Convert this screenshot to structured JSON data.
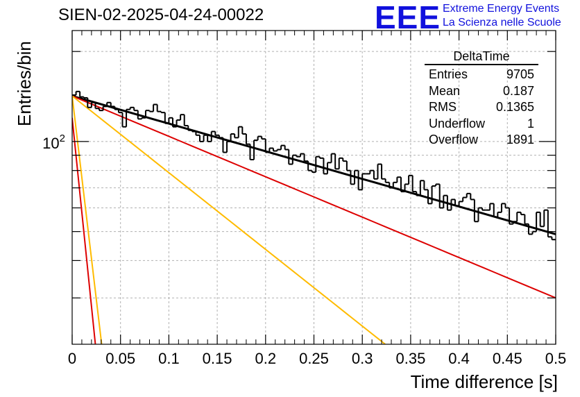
{
  "header": {
    "title": "SIEN-02-2025-04-24-00022",
    "logo_text": "EEE",
    "logo_line1": "Extreme Energy Events",
    "logo_line2": "La Scienza nelle Scuole"
  },
  "stats": {
    "name": "DeltaTime",
    "rows": [
      {
        "label": "Entries",
        "value": "9705"
      },
      {
        "label": "Mean",
        "value": "0.187"
      },
      {
        "label": "RMS",
        "value": "0.1365"
      },
      {
        "label": "Underflow",
        "value": "1"
      },
      {
        "label": "Overflow",
        "value": "1891"
      }
    ]
  },
  "colors": {
    "histogram": "#000000",
    "total_fit": "#000000",
    "red_fit": "#dd0000",
    "yellow_fit": "#ffbb00",
    "grid": "#b0b0b0",
    "logo": "#1111dd"
  },
  "chart_data": {
    "type": "histogram",
    "title": "SIEN-02-2025-04-24-00022",
    "xlabel": "Time difference [s]",
    "ylabel": "Entries/bin",
    "xlim": [
      0,
      0.5
    ],
    "ylim": [
      21,
      235
    ],
    "yscale": "log",
    "xticks": [
      0,
      0.05,
      0.1,
      0.15,
      0.2,
      0.25,
      0.3,
      0.35,
      0.4,
      0.45,
      0.5
    ],
    "xtick_labels": [
      "0",
      "0.05",
      "0.1",
      "0.15",
      "0.2",
      "0.25",
      "0.3",
      "0.35",
      "0.4",
      "0.45",
      "0.5"
    ],
    "ytick_label": {
      "base": "10",
      "exp": "2",
      "value": 100
    },
    "grid": true,
    "bin_width": 0.004,
    "bin_counts": [
      143,
      147,
      141,
      140,
      130,
      135,
      129,
      127,
      131,
      135,
      131,
      128,
      125,
      112,
      128,
      130,
      127,
      119,
      120,
      127,
      126,
      133,
      126,
      125,
      115,
      120,
      112,
      118,
      123,
      113,
      109,
      108,
      105,
      100,
      105,
      100,
      108,
      105,
      103,
      92,
      100,
      106,
      103,
      112,
      106,
      98,
      87,
      101,
      104,
      102,
      92,
      95,
      93,
      94,
      97,
      94,
      84,
      90,
      89,
      91,
      86,
      80,
      79,
      89,
      88,
      78,
      85,
      91,
      81,
      88,
      86,
      80,
      72,
      80,
      69,
      78,
      78,
      80,
      75,
      84,
      75,
      73,
      70,
      73,
      76,
      68,
      72,
      77,
      68,
      66,
      74,
      69,
      62,
      71,
      72,
      60,
      66,
      59,
      64,
      61,
      63,
      65,
      67,
      64,
      54,
      60,
      59,
      59,
      62,
      56,
      58,
      62,
      60,
      53,
      54,
      58,
      57,
      53,
      49,
      50,
      58,
      52,
      59,
      48,
      47
    ],
    "fits": [
      {
        "name": "total",
        "color": "#000000",
        "x": [
          0,
          0.5
        ],
        "y": [
          142,
          49
        ]
      },
      {
        "name": "red_slow",
        "color": "#dd0000",
        "x": [
          0,
          0.5
        ],
        "y": [
          142,
          30
        ]
      },
      {
        "name": "yellow_slow",
        "color": "#ffbb00",
        "x": [
          0,
          0.3237
        ],
        "y": [
          142,
          21
        ]
      },
      {
        "name": "red_fast",
        "color": "#dd0000",
        "x": [
          0,
          0.024
        ],
        "y": [
          120,
          21
        ]
      },
      {
        "name": "yellow_fast",
        "color": "#ffbb00",
        "x": [
          0,
          0.0305
        ],
        "y": [
          142,
          21
        ]
      }
    ]
  }
}
